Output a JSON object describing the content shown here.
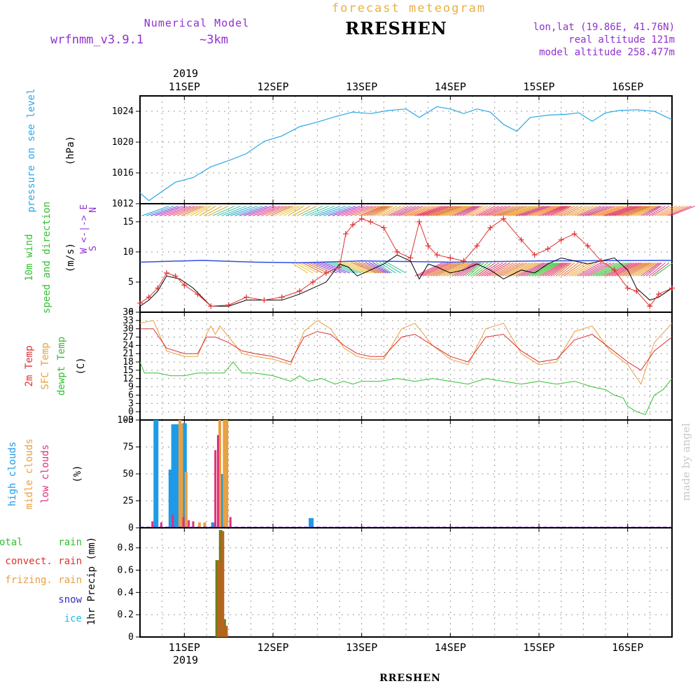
{
  "header": {
    "title": "forecast meteogram",
    "model_label": "Numerical Model",
    "model_name": "wrfnmm_v3.9.1",
    "resolution": "~3km",
    "station": "RRESHEN",
    "coords": "lon,lat (19.86E, 41.76N)",
    "real_altitude": "real altitude 121m",
    "model_altitude": "model altitude  258.477m",
    "year_top": "2019",
    "year_bottom": "2019",
    "footer_station": "RRESHEN",
    "credit": "made by angel"
  },
  "colors": {
    "title": "#e8b040",
    "model": "#9030d0",
    "station": "#000000",
    "pressure": "#2aa7e6",
    "green": "#33c033",
    "violet": "#8a2be2",
    "red": "#e03030",
    "orange": "#e8a040",
    "magenta": "#e0307a",
    "blue": "#1e9be8",
    "olive": "#6f7c1a",
    "brown": "#b5651d",
    "credit": "#c8c8c8"
  },
  "chart_data": [
    {
      "type": "line",
      "panel": "pressure",
      "ylabel": [
        "pressure on see level",
        "(hPa)"
      ],
      "ylim": [
        1012,
        1026
      ],
      "yticks": [
        1012,
        1016,
        1020,
        1024
      ],
      "x_unit": "day of September 2019",
      "xlim": [
        10.5,
        16.5
      ],
      "x_tick_labels": [
        "11SEP",
        "12SEP",
        "13SEP",
        "14SEP",
        "15SEP",
        "16SEP"
      ],
      "grid": true,
      "series": [
        {
          "name": "pressure on see level",
          "x": [
            10.5,
            10.6,
            10.75,
            10.9,
            11.1,
            11.3,
            11.5,
            11.7,
            11.9,
            12.1,
            12.3,
            12.5,
            12.7,
            12.9,
            13.1,
            13.3,
            13.5,
            13.65,
            13.85,
            14.0,
            14.15,
            14.3,
            14.45,
            14.6,
            14.75,
            14.9,
            15.1,
            15.3,
            15.45,
            15.6,
            15.75,
            15.9,
            16.1,
            16.3,
            16.5
          ],
          "y": [
            1013.4,
            1012.4,
            1013.6,
            1014.8,
            1015.4,
            1016.8,
            1017.6,
            1018.5,
            1020.1,
            1020.8,
            1022.0,
            1022.6,
            1023.3,
            1023.9,
            1023.7,
            1024.1,
            1024.3,
            1023.2,
            1024.6,
            1024.3,
            1023.7,
            1024.3,
            1023.9,
            1022.3,
            1021.4,
            1023.2,
            1023.5,
            1023.6,
            1023.8,
            1022.7,
            1023.8,
            1024.1,
            1024.2,
            1024.0,
            1022.9
          ]
        }
      ]
    },
    {
      "type": "line",
      "panel": "wind",
      "ylabel": [
        "10m wind",
        "speed and direction",
        "(m/s)"
      ],
      "compass": [
        "N",
        "W <-|-> E",
        "S"
      ],
      "ylim": [
        0,
        18
      ],
      "yticks": [
        0,
        5,
        10,
        15
      ],
      "xlim": [
        10.5,
        16.5
      ],
      "grid": true,
      "series": [
        {
          "name": "wind speed",
          "x": [
            10.5,
            10.6,
            10.7,
            10.8,
            10.9,
            11.0,
            11.15,
            11.3,
            11.5,
            11.7,
            11.9,
            12.1,
            12.3,
            12.45,
            12.6,
            12.75,
            12.82,
            12.9,
            13.0,
            13.1,
            13.25,
            13.4,
            13.55,
            13.65,
            13.75,
            13.85,
            14.0,
            14.15,
            14.3,
            14.45,
            14.6,
            14.8,
            14.95,
            15.1,
            15.25,
            15.4,
            15.55,
            15.7,
            15.85,
            16.0,
            16.1,
            16.25,
            16.35,
            16.5
          ],
          "y": [
            1.5,
            2.5,
            4.0,
            6.5,
            6.0,
            4.5,
            3.0,
            1.0,
            1.2,
            2.5,
            2.0,
            2.5,
            3.5,
            5.0,
            6.5,
            7.5,
            13.0,
            14.5,
            15.5,
            15.0,
            14.0,
            10.0,
            9.0,
            15.0,
            11.0,
            9.5,
            9.0,
            8.5,
            11.0,
            14.0,
            15.5,
            12.0,
            9.5,
            10.5,
            12.0,
            13.0,
            11.0,
            8.5,
            7.0,
            4.0,
            3.5,
            1.0,
            3.0,
            4.0
          ]
        },
        {
          "name": "wind gust",
          "x": [
            10.5,
            10.6,
            10.7,
            10.8,
            10.95,
            11.1,
            11.3,
            11.5,
            11.7,
            11.9,
            12.1,
            12.3,
            12.45,
            12.6,
            12.75,
            12.85,
            12.95,
            13.1,
            13.25,
            13.4,
            13.55,
            13.65,
            13.75,
            13.85,
            14.0,
            14.15,
            14.3,
            14.45,
            14.6,
            14.8,
            14.95,
            15.1,
            15.25,
            15.4,
            15.55,
            15.7,
            15.85,
            16.0,
            16.1,
            16.25,
            16.35,
            16.5
          ],
          "y": [
            1.0,
            2.0,
            3.5,
            6.0,
            5.5,
            4.0,
            1.0,
            1.0,
            2.0,
            2.0,
            2.0,
            3.0,
            4.0,
            5.0,
            8.0,
            7.5,
            6.0,
            7.0,
            8.0,
            9.5,
            8.5,
            5.5,
            8.0,
            7.5,
            6.5,
            7.0,
            8.0,
            7.0,
            5.5,
            7.0,
            6.5,
            8.0,
            9.0,
            8.5,
            8.0,
            8.5,
            9.0,
            7.0,
            4.0,
            2.0,
            2.5,
            4.0
          ]
        }
      ]
    },
    {
      "type": "line",
      "panel": "temperature",
      "ylabel": [
        "2m Temp",
        "SFC Temp",
        "dewpt Temp",
        "(C)"
      ],
      "ylim": [
        -3,
        36
      ],
      "yticks": [
        -3,
        0,
        3,
        6,
        9,
        12,
        15,
        18,
        21,
        24,
        27,
        30,
        33,
        36
      ],
      "xlim": [
        10.5,
        16.5
      ],
      "grid": true,
      "series": [
        {
          "name": "2m Temp",
          "x": [
            10.5,
            10.65,
            10.8,
            11.0,
            11.15,
            11.25,
            11.35,
            11.5,
            11.65,
            11.8,
            12.0,
            12.2,
            12.35,
            12.5,
            12.65,
            12.8,
            12.95,
            13.1,
            13.25,
            13.45,
            13.6,
            13.8,
            14.0,
            14.2,
            14.4,
            14.6,
            14.8,
            15.0,
            15.2,
            15.4,
            15.6,
            15.8,
            16.0,
            16.15,
            16.3,
            16.5
          ],
          "y": [
            30,
            30,
            23,
            21,
            21,
            27,
            27,
            25,
            22,
            21,
            20,
            18,
            27,
            29,
            28,
            24,
            21,
            20,
            20,
            27,
            28,
            24,
            20,
            18,
            27,
            28,
            22,
            18,
            19,
            26,
            28,
            23,
            18,
            15,
            22,
            27
          ]
        },
        {
          "name": "SFC Temp",
          "x": [
            10.5,
            10.65,
            10.8,
            11.0,
            11.15,
            11.25,
            11.3,
            11.35,
            11.4,
            11.5,
            11.65,
            11.8,
            12.0,
            12.2,
            12.35,
            12.5,
            12.65,
            12.8,
            12.95,
            13.1,
            13.25,
            13.45,
            13.6,
            13.8,
            14.0,
            14.2,
            14.4,
            14.6,
            14.8,
            15.0,
            15.2,
            15.4,
            15.6,
            15.8,
            16.0,
            16.15,
            16.3,
            16.5
          ],
          "y": [
            32,
            33,
            22,
            20,
            20,
            28,
            31,
            28,
            31,
            27,
            21,
            20,
            19,
            17,
            29,
            33,
            30,
            23,
            20,
            19,
            19,
            30,
            32,
            24,
            19,
            17,
            30,
            32,
            21,
            17,
            18,
            29,
            31,
            22,
            17,
            10,
            25,
            32
          ]
        },
        {
          "name": "dewpt Temp",
          "x": [
            10.5,
            10.55,
            10.7,
            10.85,
            11.0,
            11.15,
            11.3,
            11.45,
            11.55,
            11.65,
            11.8,
            12.0,
            12.2,
            12.3,
            12.4,
            12.55,
            12.7,
            12.8,
            12.9,
            13.0,
            13.2,
            13.4,
            13.6,
            13.8,
            14.0,
            14.2,
            14.4,
            14.6,
            14.8,
            15.0,
            15.2,
            15.4,
            15.6,
            15.75,
            15.85,
            15.95,
            16.0,
            16.1,
            16.2,
            16.3,
            16.4,
            16.5
          ],
          "y": [
            18,
            14,
            14,
            13,
            13,
            14,
            14,
            14,
            18,
            14,
            14,
            13,
            11,
            13,
            11,
            12,
            10,
            11,
            10,
            11,
            11,
            12,
            11,
            12,
            11,
            10,
            12,
            11,
            10,
            11,
            10,
            11,
            9,
            8,
            6,
            5,
            2,
            0,
            -1,
            6,
            8,
            12
          ]
        }
      ]
    },
    {
      "type": "bar",
      "panel": "clouds",
      "ylabel": [
        "high clouds",
        "midle clouds",
        "low clouds",
        "(%)"
      ],
      "ylim": [
        0,
        100
      ],
      "yticks": [
        0,
        25,
        50,
        75,
        100
      ],
      "xlim": [
        10.5,
        16.5
      ],
      "grid": true,
      "series": [
        {
          "name": "high clouds",
          "x": [
            10.68,
            10.85,
            10.88,
            10.92,
            11.0,
            11.33,
            11.42,
            12.43
          ],
          "y": [
            100,
            54,
            96,
            96,
            97,
            5,
            50,
            9
          ]
        },
        {
          "name": "midle clouds",
          "x": [
            10.95,
            10.97,
            11.02,
            11.17,
            11.23,
            11.4,
            11.45,
            11.48
          ],
          "y": [
            100,
            96,
            52,
            5,
            5,
            100,
            100,
            100
          ]
        },
        {
          "name": "low clouds",
          "x": [
            10.64,
            10.74,
            10.87,
            10.99,
            11.05,
            11.1,
            11.35,
            11.38,
            11.52
          ],
          "y": [
            6,
            5,
            12,
            10,
            7,
            6,
            72,
            86,
            10
          ]
        }
      ]
    },
    {
      "type": "bar",
      "panel": "precipitation",
      "ylabel": [
        "1hr Precip (mm)"
      ],
      "legend": [
        "total rain",
        "convect. rain",
        "frizing. rain",
        "snow",
        "ice"
      ],
      "ylim": [
        0,
        0.98
      ],
      "yticks": [
        0,
        0.2,
        0.4,
        0.6,
        0.8
      ],
      "xlim": [
        10.5,
        16.5
      ],
      "grid": true,
      "series": [
        {
          "name": "total rain",
          "x": [
            11.37,
            11.41,
            11.45
          ],
          "y": [
            0.69,
            0.96,
            0.16
          ]
        },
        {
          "name": "convect. rain",
          "x": [
            11.39,
            11.43,
            11.47
          ],
          "y": [
            0.68,
            0.95,
            0.1
          ]
        }
      ]
    }
  ],
  "precip_legend": {
    "total": "total      rain",
    "convect": "convect. rain",
    "frizing": "frizing. rain",
    "snow": "snow",
    "ice": "ice"
  }
}
